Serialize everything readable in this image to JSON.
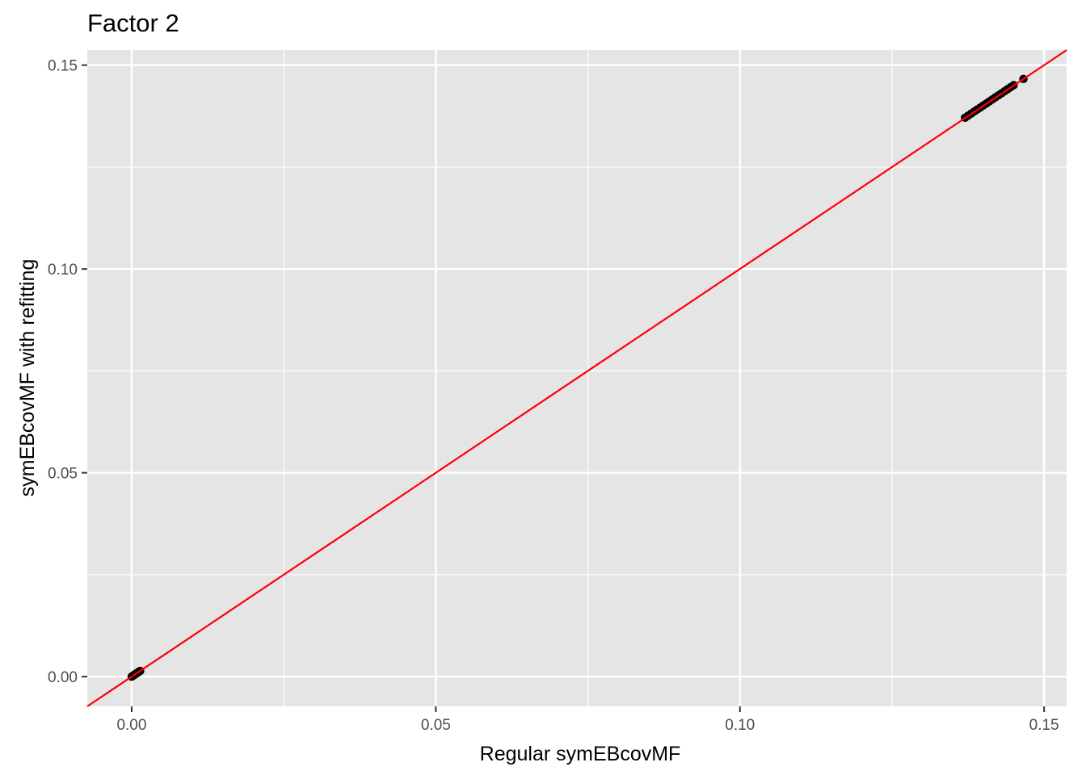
{
  "chart_data": {
    "type": "scatter",
    "title": "Factor 2",
    "xlabel": "Regular symEBcovMF",
    "ylabel": "symEBcovMF with refitting",
    "xlim": [
      -0.0073,
      0.1537
    ],
    "ylim": [
      -0.0073,
      0.1537
    ],
    "x_ticks": [
      "0.00",
      "0.05",
      "0.10",
      "0.15"
    ],
    "y_ticks": [
      "0.00",
      "0.05",
      "0.10",
      "0.15"
    ],
    "x_tick_values": [
      0,
      0.05,
      0.1,
      0.15
    ],
    "y_tick_values": [
      0,
      0.05,
      0.1,
      0.15
    ],
    "grid": true,
    "legend": "none",
    "panel_color": "#e5e5e5",
    "grid_color": "#ffffff",
    "point_color": "#000000",
    "reference_line": {
      "type": "identity",
      "slope": 1,
      "intercept": 0,
      "color": "#ff0000"
    },
    "points": {
      "x": [
        0.0,
        0.0001,
        0.0002,
        0.0003,
        0.0004,
        0.0005,
        0.0006,
        0.0007,
        0.0008,
        0.0009,
        0.001,
        0.0011,
        0.0012,
        0.0013,
        0.0014,
        0.137,
        0.1375,
        0.138,
        0.1385,
        0.139,
        0.1395,
        0.14,
        0.1405,
        0.141,
        0.1415,
        0.142,
        0.1425,
        0.143,
        0.1435,
        0.144,
        0.1445,
        0.145,
        0.1466
      ],
      "y": [
        0.0,
        0.0001,
        0.0002,
        0.0003,
        0.0004,
        0.0005,
        0.0006,
        0.0007,
        0.0008,
        0.0009,
        0.001,
        0.0011,
        0.0012,
        0.0013,
        0.0014,
        0.1371,
        0.1376,
        0.1381,
        0.1386,
        0.1391,
        0.1396,
        0.1401,
        0.1406,
        0.1411,
        0.1416,
        0.1421,
        0.1426,
        0.1431,
        0.1436,
        0.1441,
        0.1446,
        0.1451,
        0.1466
      ]
    }
  }
}
